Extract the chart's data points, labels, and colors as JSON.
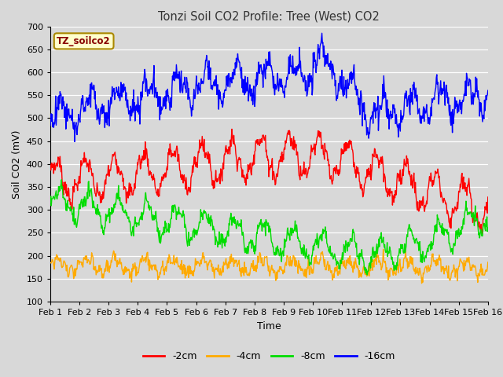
{
  "title": "Tonzi Soil CO2 Profile: Tree (West) CO2",
  "xlabel": "Time",
  "ylabel": "Soil CO2 (mV)",
  "ylim": [
    100,
    700
  ],
  "yticks": [
    100,
    150,
    200,
    250,
    300,
    350,
    400,
    450,
    500,
    550,
    600,
    650,
    700
  ],
  "xlim": [
    0,
    15
  ],
  "xtick_labels": [
    "Feb 1",
    "Feb 2",
    "Feb 3",
    "Feb 4",
    "Feb 5",
    "Feb 6",
    "Feb 7",
    "Feb 8",
    "Feb 9",
    "Feb 10",
    "Feb 11",
    "Feb 12",
    "Feb 13",
    "Feb 14",
    "Feb 15",
    "Feb 16"
  ],
  "legend_label": "TZ_soilco2",
  "legend_facecolor": "#ffffcc",
  "legend_edgecolor": "#aa8800",
  "series_labels": [
    "-2cm",
    "-4cm",
    "-8cm",
    "-16cm"
  ],
  "series_colors": [
    "#ff0000",
    "#ffaa00",
    "#00dd00",
    "#0000ff"
  ],
  "bg_color": "#d8d8d8",
  "plot_bg_color": "#d8d8d8",
  "grid_color": "#ffffff",
  "title_color": "#333333",
  "n_points": 900
}
